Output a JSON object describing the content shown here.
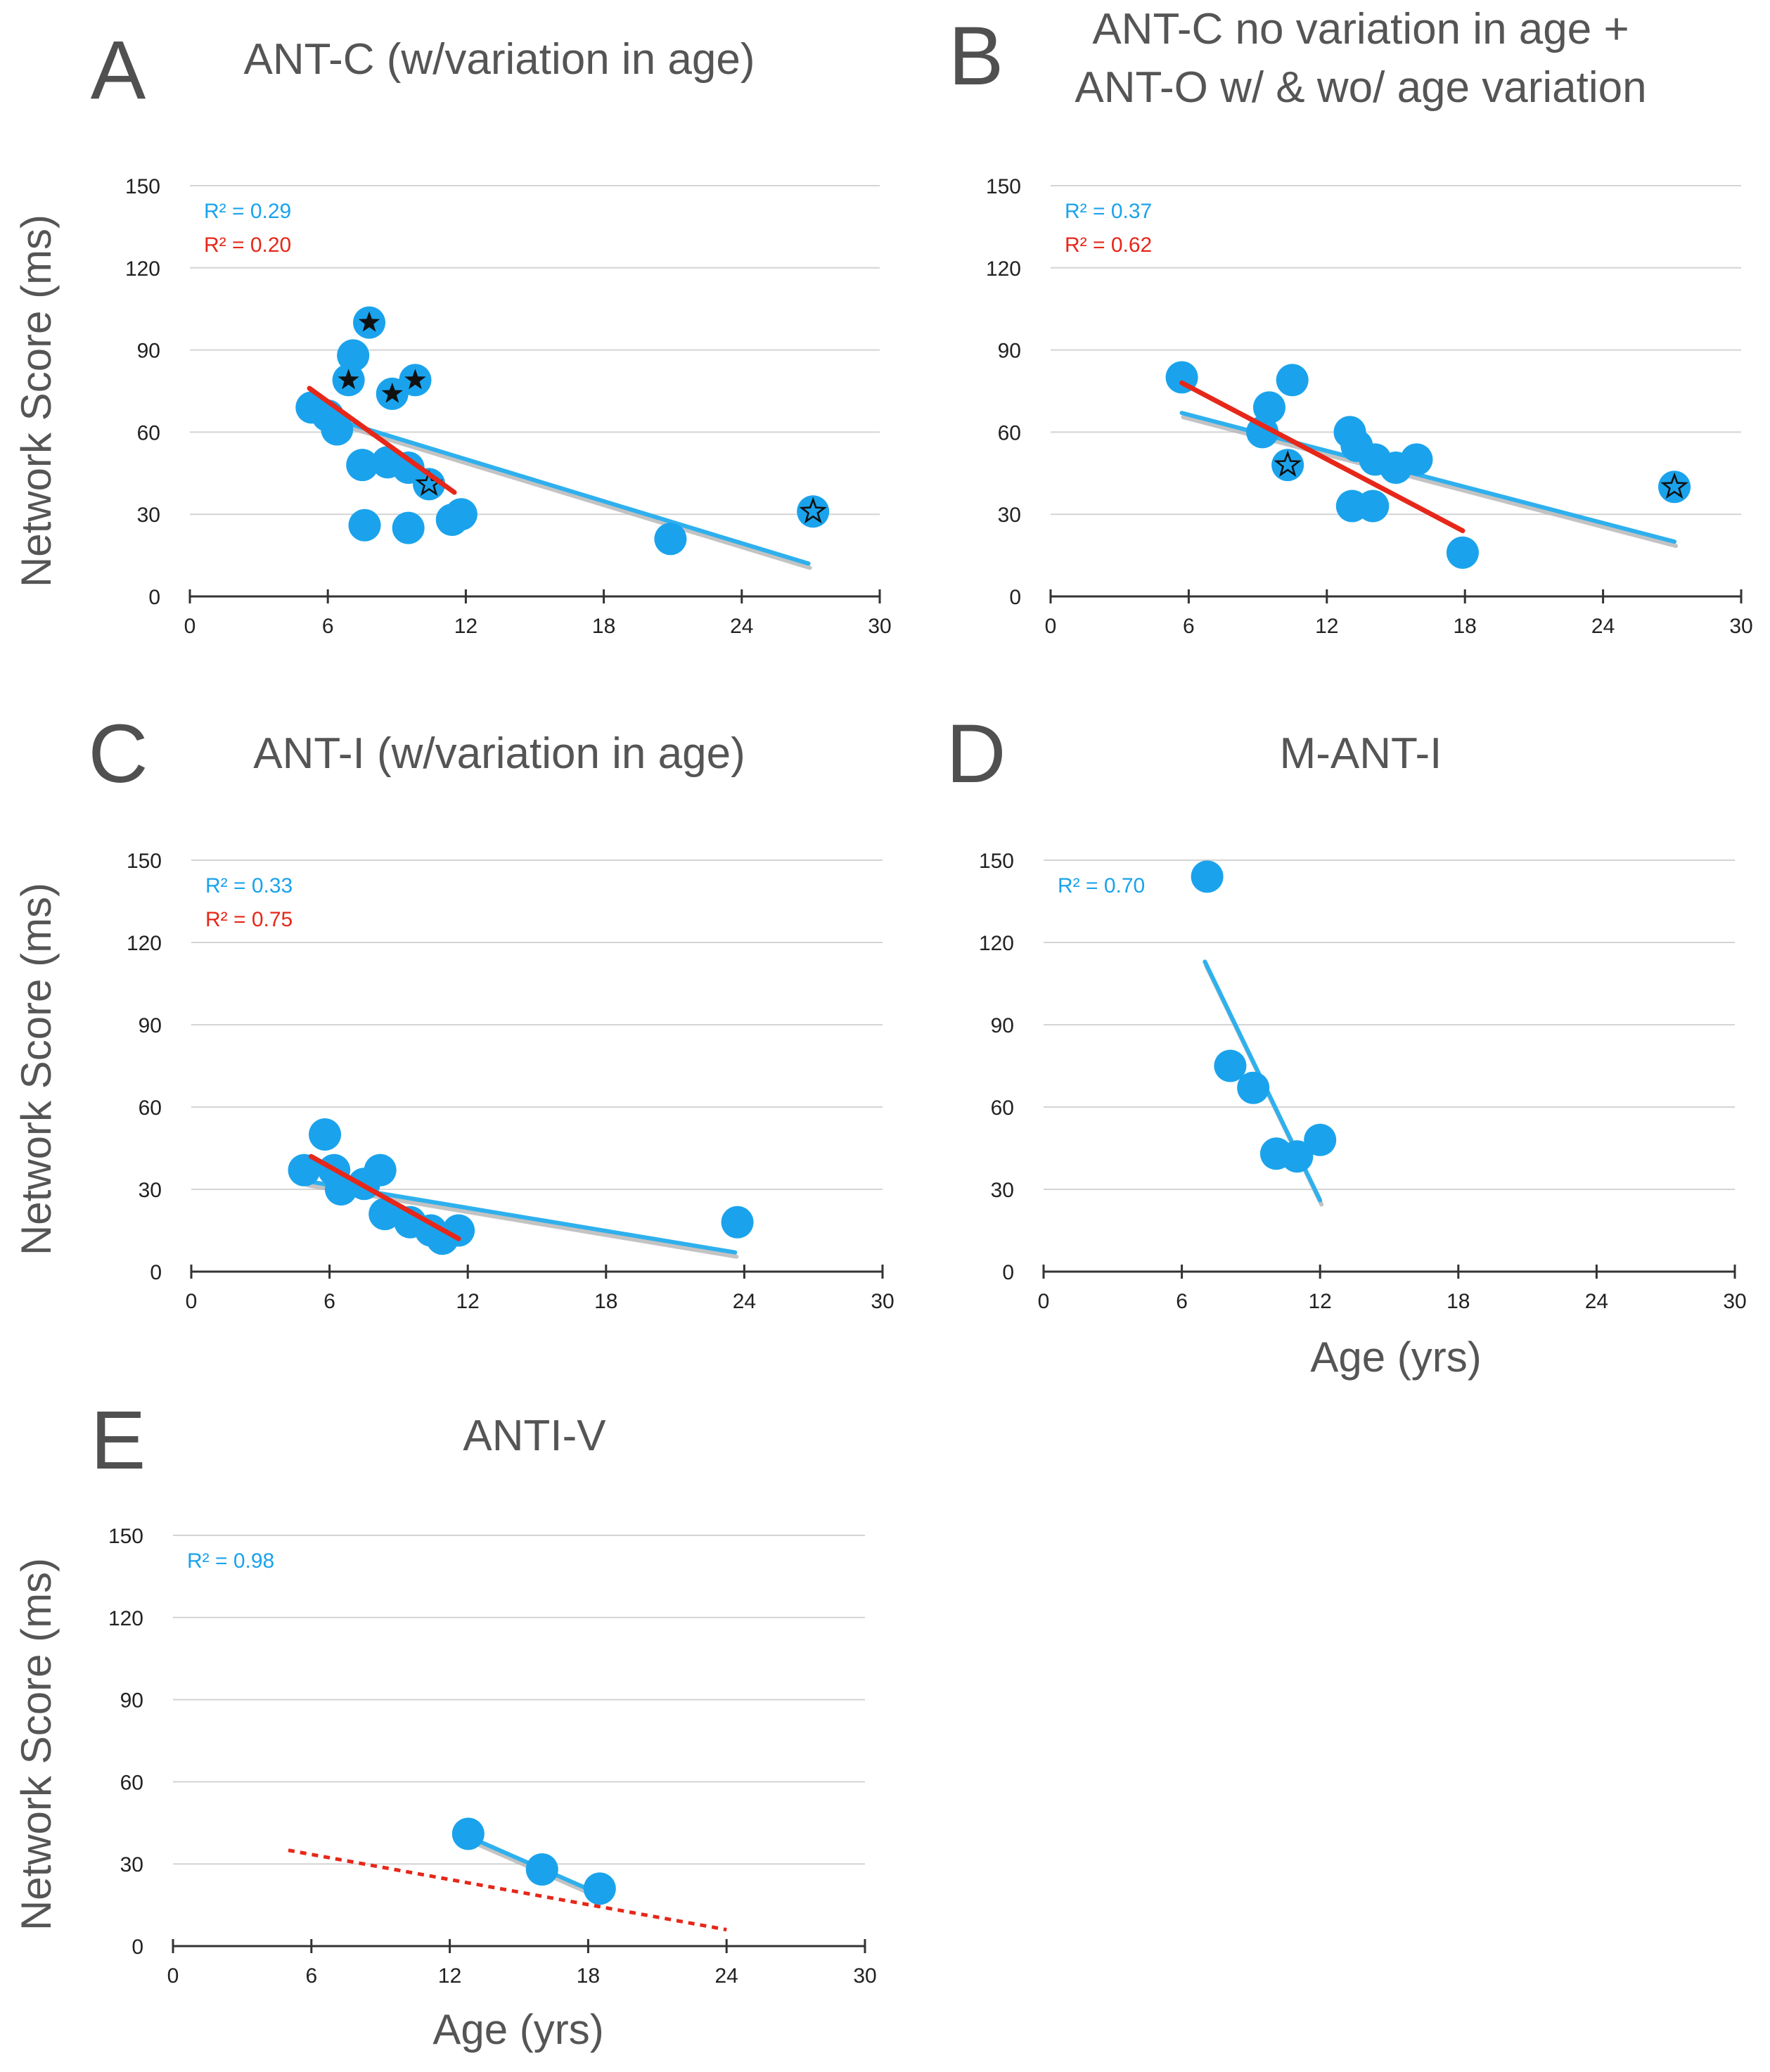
{
  "figure": {
    "colors": {
      "points": "#1aa3ec",
      "fit_blue": "#2fb0ee",
      "fit_red": "#e62719",
      "shadow": "#b5b5b5",
      "grid": "#d4d4d4",
      "axis": "#333333",
      "text": "#555555"
    }
  },
  "chart_data": [
    {
      "panel_letter": "A",
      "type": "scatter",
      "title_lines": [
        "ANT-C (w/variation in age)"
      ],
      "xlabel": "",
      "ylabel": "Network Score (ms)",
      "xlim": [
        0,
        30
      ],
      "ylim": [
        0,
        150
      ],
      "xticks": [
        "0",
        "6",
        "12",
        "18",
        "24",
        "30"
      ],
      "yticks": [
        "0",
        "30",
        "60",
        "90",
        "120",
        "150"
      ],
      "grid": true,
      "r2": [
        {
          "text": "R² = 0.29",
          "color": "#1aa3ec"
        },
        {
          "text": "R² = 0.20",
          "color": "#e62719"
        }
      ],
      "points": [
        {
          "x": 5.3,
          "y": 69
        },
        {
          "x": 6.0,
          "y": 66
        },
        {
          "x": 6.4,
          "y": 61
        },
        {
          "x": 7.1,
          "y": 88
        },
        {
          "x": 6.9,
          "y": 79,
          "marker": "star-filled"
        },
        {
          "x": 7.8,
          "y": 100,
          "marker": "star-filled"
        },
        {
          "x": 8.8,
          "y": 74,
          "marker": "star-filled"
        },
        {
          "x": 9.8,
          "y": 79,
          "marker": "star-filled"
        },
        {
          "x": 7.5,
          "y": 48
        },
        {
          "x": 8.6,
          "y": 49
        },
        {
          "x": 9.5,
          "y": 47
        },
        {
          "x": 10.4,
          "y": 41,
          "marker": "star-open"
        },
        {
          "x": 7.6,
          "y": 26
        },
        {
          "x": 9.5,
          "y": 25
        },
        {
          "x": 11.4,
          "y": 28
        },
        {
          "x": 11.8,
          "y": 30
        },
        {
          "x": 20.9,
          "y": 21
        },
        {
          "x": 27.1,
          "y": 31,
          "marker": "star-open"
        }
      ],
      "fits": [
        {
          "color": "#2fb0ee",
          "dash": false,
          "x": [
            5.0,
            26.9
          ],
          "y": [
            68,
            12
          ]
        },
        {
          "color": "#e62719",
          "dash": false,
          "x": [
            5.2,
            11.5
          ],
          "y": [
            76,
            38
          ]
        }
      ]
    },
    {
      "panel_letter": "B",
      "type": "scatter",
      "title_lines": [
        "ANT-C no variation in age +",
        "ANT-O w/ & wo/ age variation"
      ],
      "xlabel": "",
      "ylabel": "",
      "xlim": [
        0,
        30
      ],
      "ylim": [
        0,
        150
      ],
      "xticks": [
        "0",
        "6",
        "12",
        "18",
        "24",
        "30"
      ],
      "yticks": [
        "0",
        "30",
        "60",
        "90",
        "120",
        "150"
      ],
      "grid": true,
      "r2": [
        {
          "text": "R² = 0.37",
          "color": "#1aa3ec"
        },
        {
          "text": "R² = 0.62",
          "color": "#e62719"
        }
      ],
      "points": [
        {
          "x": 5.7,
          "y": 80
        },
        {
          "x": 9.5,
          "y": 69
        },
        {
          "x": 10.5,
          "y": 79
        },
        {
          "x": 9.2,
          "y": 60
        },
        {
          "x": 10.3,
          "y": 48,
          "marker": "star-open"
        },
        {
          "x": 13.0,
          "y": 60
        },
        {
          "x": 13.3,
          "y": 55
        },
        {
          "x": 14.1,
          "y": 50
        },
        {
          "x": 15.0,
          "y": 47
        },
        {
          "x": 15.9,
          "y": 50
        },
        {
          "x": 13.1,
          "y": 33
        },
        {
          "x": 14.0,
          "y": 33
        },
        {
          "x": 17.9,
          "y": 16
        },
        {
          "x": 27.1,
          "y": 40,
          "marker": "star-open"
        }
      ],
      "fits": [
        {
          "color": "#2fb0ee",
          "dash": false,
          "x": [
            5.7,
            27.1
          ],
          "y": [
            67,
            20
          ]
        },
        {
          "color": "#e62719",
          "dash": false,
          "x": [
            5.7,
            17.9
          ],
          "y": [
            78,
            24
          ]
        }
      ]
    },
    {
      "panel_letter": "C",
      "type": "scatter",
      "title_lines": [
        "ANT-I (w/variation in age)"
      ],
      "xlabel": "",
      "ylabel": "Network Score (ms)",
      "xlim": [
        0,
        30
      ],
      "ylim": [
        0,
        150
      ],
      "xticks": [
        "0",
        "6",
        "12",
        "18",
        "24",
        "30"
      ],
      "yticks": [
        "0",
        "30",
        "60",
        "90",
        "120",
        "150"
      ],
      "grid": true,
      "r2": [
        {
          "text": "R² = 0.33",
          "color": "#1aa3ec"
        },
        {
          "text": "R² = 0.75",
          "color": "#e62719"
        }
      ],
      "points": [
        {
          "x": 4.9,
          "y": 37
        },
        {
          "x": 5.8,
          "y": 50
        },
        {
          "x": 6.2,
          "y": 37
        },
        {
          "x": 6.5,
          "y": 30
        },
        {
          "x": 7.5,
          "y": 32
        },
        {
          "x": 8.2,
          "y": 37
        },
        {
          "x": 8.4,
          "y": 21
        },
        {
          "x": 9.5,
          "y": 18
        },
        {
          "x": 10.4,
          "y": 15
        },
        {
          "x": 10.9,
          "y": 12
        },
        {
          "x": 11.6,
          "y": 15
        },
        {
          "x": 23.7,
          "y": 18
        }
      ],
      "fits": [
        {
          "color": "#2fb0ee",
          "dash": false,
          "x": [
            5.0,
            23.6
          ],
          "y": [
            33,
            7
          ]
        },
        {
          "color": "#e62719",
          "dash": false,
          "x": [
            5.2,
            11.6
          ],
          "y": [
            42,
            12
          ]
        }
      ]
    },
    {
      "panel_letter": "D",
      "type": "scatter",
      "title_lines": [
        "M-ANT-I"
      ],
      "xlabel": "Age (yrs)",
      "ylabel": "",
      "xlim": [
        0,
        30
      ],
      "ylim": [
        0,
        150
      ],
      "xticks": [
        "0",
        "6",
        "12",
        "18",
        "24",
        "30"
      ],
      "yticks": [
        "0",
        "30",
        "60",
        "90",
        "120",
        "150"
      ],
      "grid": true,
      "r2": [
        {
          "text": "R² = 0.70",
          "color": "#1aa3ec"
        }
      ],
      "points": [
        {
          "x": 7.1,
          "y": 144
        },
        {
          "x": 8.1,
          "y": 75
        },
        {
          "x": 9.1,
          "y": 67
        },
        {
          "x": 10.1,
          "y": 43
        },
        {
          "x": 11.0,
          "y": 42
        },
        {
          "x": 12.0,
          "y": 48
        }
      ],
      "fits": [
        {
          "color": "#2fb0ee",
          "dash": false,
          "x": [
            7.0,
            12.0
          ],
          "y": [
            113,
            26
          ]
        }
      ]
    },
    {
      "panel_letter": "E",
      "type": "scatter",
      "title_lines": [
        "ANTI-V"
      ],
      "xlabel": "Age (yrs)",
      "ylabel": "Network Score (ms)",
      "xlim": [
        0,
        30
      ],
      "ylim": [
        0,
        150
      ],
      "xticks": [
        "0",
        "6",
        "12",
        "18",
        "24",
        "30"
      ],
      "yticks": [
        "0",
        "30",
        "60",
        "90",
        "120",
        "150"
      ],
      "grid": true,
      "r2": [
        {
          "text": "R² = 0.98",
          "color": "#1aa3ec"
        }
      ],
      "points": [
        {
          "x": 12.8,
          "y": 41
        },
        {
          "x": 16.0,
          "y": 28
        },
        {
          "x": 18.5,
          "y": 21
        }
      ],
      "fits": [
        {
          "color": "#2fb0ee",
          "dash": false,
          "x": [
            12.8,
            18.5
          ],
          "y": [
            40,
            19
          ]
        },
        {
          "color": "#e62719",
          "dash": true,
          "x": [
            5.0,
            24.0
          ],
          "y": [
            35,
            6
          ]
        }
      ]
    }
  ]
}
